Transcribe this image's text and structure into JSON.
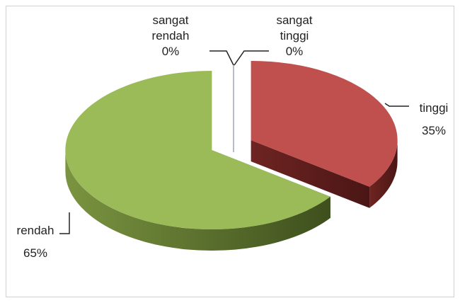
{
  "chart_data": {
    "type": "pie",
    "three_d": true,
    "categories": [
      "sangat tinggi",
      "tinggi",
      "rendah",
      "sangat rendah"
    ],
    "values": [
      0,
      35,
      65,
      0
    ],
    "value_labels": [
      "0%",
      "35%",
      "65%",
      "0%"
    ],
    "colors": [
      "#4f81bd",
      "#c0504d",
      "#9bbb59",
      "#8064a2"
    ]
  }
}
